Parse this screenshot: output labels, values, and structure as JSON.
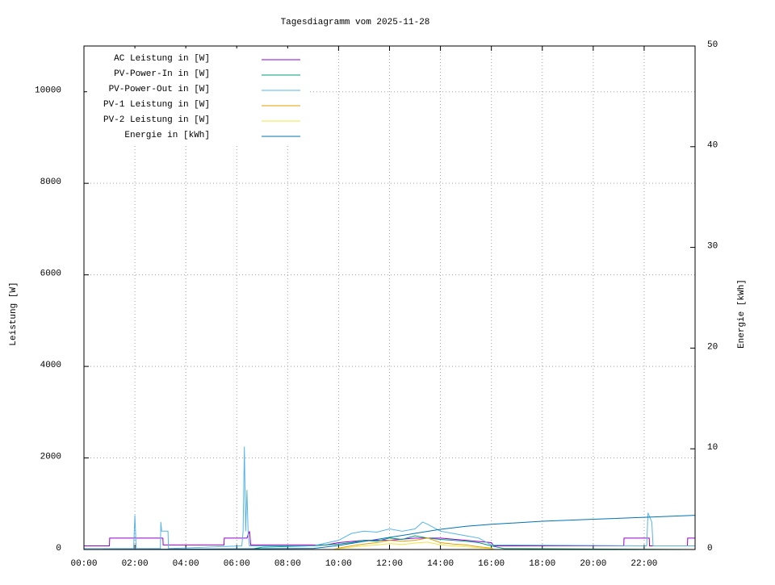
{
  "chart_data": {
    "type": "line",
    "title": "Tagesdiagramm vom 2025-11-28",
    "ylabel": "Leistung [W]",
    "y2label": "Energie [kWh]",
    "xlim": [
      0,
      24
    ],
    "xticks": [
      {
        "value": 0,
        "label": "00:00"
      },
      {
        "value": 2,
        "label": "02:00"
      },
      {
        "value": 4,
        "label": "04:00"
      },
      {
        "value": 6,
        "label": "06:00"
      },
      {
        "value": 8,
        "label": "08:00"
      },
      {
        "value": 10,
        "label": "10:00"
      },
      {
        "value": 12,
        "label": "12:00"
      },
      {
        "value": 14,
        "label": "14:00"
      },
      {
        "value": 16,
        "label": "16:00"
      },
      {
        "value": 18,
        "label": "18:00"
      },
      {
        "value": 20,
        "label": "20:00"
      },
      {
        "value": 22,
        "label": "22:00"
      }
    ],
    "ylim": [
      0,
      11000
    ],
    "yticks": [
      0,
      2000,
      4000,
      6000,
      8000,
      10000
    ],
    "y2lim": [
      0,
      50
    ],
    "y2ticks": [
      0,
      10,
      20,
      30,
      40,
      50
    ],
    "grid": true,
    "legend": "top-left",
    "series": [
      {
        "name": "AC Leistung in [W]",
        "color": "#9400d3",
        "x": [
          0,
          1,
          1.01,
          3.1,
          3.11,
          5.5,
          5.51,
          6.4,
          6.5,
          6.55,
          9.5,
          10,
          11,
          12,
          13,
          14,
          15,
          16,
          16.1,
          21.2,
          21.21,
          22.2,
          22.21,
          23.7,
          23.71,
          24
        ],
        "values": [
          80,
          80,
          250,
          250,
          100,
          100,
          250,
          250,
          400,
          100,
          100,
          150,
          200,
          200,
          250,
          250,
          200,
          150,
          80,
          80,
          250,
          250,
          80,
          80,
          250,
          250
        ]
      },
      {
        "name": "PV-Power-In in [W]",
        "color": "#009e73",
        "x": [
          0,
          6.5,
          7,
          9,
          10,
          10.5,
          11,
          11.5,
          12,
          12.5,
          13,
          13.5,
          14,
          14.5,
          15,
          15.5,
          16,
          16.5,
          24
        ],
        "values": [
          0,
          0,
          50,
          80,
          120,
          150,
          200,
          180,
          250,
          220,
          300,
          250,
          220,
          200,
          180,
          150,
          80,
          20,
          0
        ]
      },
      {
        "name": "PV-Power-Out in [W]",
        "color": "#56b4e9",
        "x": [
          0,
          1.95,
          2.0,
          2.05,
          2.1,
          3.0,
          3.02,
          3.05,
          3.1,
          3.3,
          3.32,
          6.2,
          6.25,
          6.3,
          6.35,
          6.4,
          6.45,
          6.5,
          9,
          10,
          10.5,
          11,
          11.5,
          12,
          12.5,
          13,
          13.3,
          13.5,
          14,
          14.5,
          15,
          15.5,
          16,
          22.1,
          22.15,
          22.3,
          22.35,
          24
        ],
        "values": [
          20,
          20,
          750,
          20,
          20,
          20,
          600,
          400,
          400,
          400,
          20,
          80,
          400,
          2250,
          400,
          1300,
          300,
          80,
          80,
          200,
          350,
          400,
          380,
          450,
          400,
          450,
          600,
          550,
          400,
          350,
          300,
          250,
          100,
          80,
          800,
          600,
          80,
          80
        ]
      },
      {
        "name": "PV-1 Leistung in [W]",
        "color": "#e69f00",
        "x": [
          0,
          9.8,
          10,
          10.5,
          11,
          11.5,
          12,
          12.5,
          13,
          13.5,
          14,
          14.5,
          15,
          15.5,
          16,
          16.1,
          24
        ],
        "values": [
          0,
          0,
          30,
          80,
          120,
          150,
          200,
          180,
          200,
          250,
          150,
          120,
          100,
          60,
          30,
          0,
          0
        ]
      },
      {
        "name": "PV-2 Leistung in [W]",
        "color": "#f0e442",
        "x": [
          0,
          9.8,
          10,
          10.5,
          11,
          11.5,
          12,
          12.5,
          13,
          13.5,
          14,
          14.5,
          15,
          15.5,
          16,
          16.1,
          24
        ],
        "values": [
          0,
          0,
          20,
          50,
          80,
          100,
          130,
          110,
          140,
          160,
          100,
          80,
          60,
          40,
          20,
          0,
          0
        ]
      },
      {
        "name": "Energie in [kWh]",
        "color": "#0072b2",
        "axis": "y2",
        "x": [
          0,
          9,
          10,
          11,
          12,
          13,
          14,
          15,
          16,
          18,
          20,
          22,
          24
        ],
        "values": [
          0,
          0.1,
          0.4,
          0.8,
          1.2,
          1.6,
          2.0,
          2.3,
          2.5,
          2.8,
          3.0,
          3.2,
          3.4
        ]
      }
    ]
  }
}
